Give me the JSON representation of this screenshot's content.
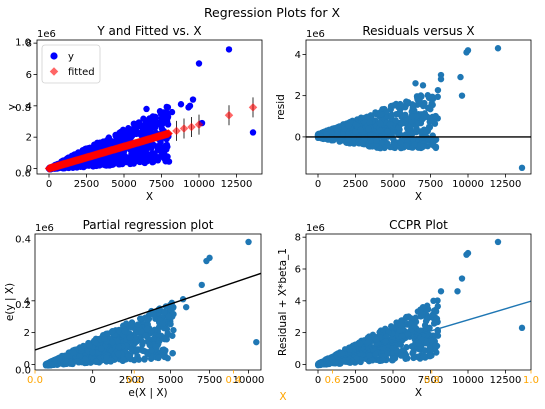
{
  "figure": {
    "suptitle": "Regression Plots for X",
    "overlay_xlabel": "X",
    "overlay_ticks": [
      "0.0",
      "0.2",
      "0.4",
      "0.6",
      "0.8",
      "1.0"
    ],
    "overlay_yticks": [
      "0.0",
      "0.2",
      "0.4",
      "0.6",
      "0.8",
      "1.0"
    ],
    "overlay_color": "#ffa500"
  },
  "chart_data": [
    {
      "type": "scatter",
      "title": "Y and Fitted vs. X",
      "xlabel": "X",
      "ylabel": "y",
      "offset_label": "1e6",
      "xlim": [
        -800,
        14200
      ],
      "ylim": [
        -0.35,
        8.2
      ],
      "xticks": [
        0,
        2500,
        5000,
        7500,
        10000,
        12500
      ],
      "xtick_labels": [
        "0",
        "2500",
        "5000",
        "7500",
        "10000",
        "12500"
      ],
      "yticks": [
        0,
        2,
        4,
        6,
        8
      ],
      "ytick_labels": [
        "0",
        "2",
        "4",
        "6",
        "8"
      ],
      "legend": {
        "placement": "upper-left",
        "entries": [
          "y",
          "fitted"
        ]
      },
      "colors": {
        "y": "#0000ff",
        "fitted": "#ff0000",
        "errorbar": "#000000"
      },
      "series": [
        {
          "name": "y",
          "marker": "circle",
          "outliers": [
            [
              12000,
              7.6
            ],
            [
              10000,
              6.7
            ],
            [
              9600,
              4.4
            ],
            [
              9400,
              4.0
            ],
            [
              9300,
              3.9
            ],
            [
              8800,
              4.1
            ],
            [
              8200,
              3.6
            ],
            [
              7700,
              3.3
            ],
            [
              13600,
              2.3
            ],
            [
              10200,
              2.9
            ],
            [
              6500,
              3.8
            ],
            [
              7000,
              3.2
            ]
          ]
        },
        {
          "name": "fitted",
          "marker": "diamond",
          "slope": 0.28,
          "x_range": [
            0,
            8000
          ],
          "errorbar_points": [
            [
              8500,
              2.4
            ],
            [
              9000,
              2.55
            ],
            [
              9500,
              2.65
            ],
            [
              10000,
              2.8
            ],
            [
              12000,
              3.4
            ],
            [
              13600,
              3.9
            ]
          ]
        }
      ]
    },
    {
      "type": "scatter",
      "title": "Residuals versus X",
      "xlabel": "X",
      "ylabel": "resid",
      "offset_label": "1e6",
      "xlim": [
        -800,
        14200
      ],
      "ylim": [
        -1.8,
        4.7
      ],
      "xticks": [
        0,
        2500,
        5000,
        7500,
        10000,
        12500
      ],
      "xtick_labels": [
        "0",
        "2500",
        "5000",
        "7500",
        "10000",
        "12500"
      ],
      "yticks": [
        0,
        2,
        4
      ],
      "ytick_labels": [
        "0",
        "2",
        "4"
      ],
      "hline": 0,
      "color": "#1f77b4",
      "outliers": [
        [
          12000,
          4.3
        ],
        [
          10000,
          4.2
        ],
        [
          9900,
          4.1
        ],
        [
          9500,
          2.9
        ],
        [
          9600,
          2.0
        ],
        [
          8200,
          3.0
        ],
        [
          8200,
          2.8
        ],
        [
          7000,
          2.5
        ],
        [
          13600,
          -1.5
        ],
        [
          6500,
          2.6
        ]
      ]
    },
    {
      "type": "scatter",
      "title": "Partial regression plot",
      "xlabel": "e(X | X)",
      "ylabel": "e(y | X)",
      "offset_label": "1e6",
      "xlim": [
        -3700,
        10800
      ],
      "ylim": [
        -0.35,
        8.2
      ],
      "xticks": [
        0,
        2500,
        5000,
        7500,
        10000
      ],
      "xtick_labels": [
        "0",
        "2500",
        "5000",
        "7500",
        "10000"
      ],
      "yticks": [
        0,
        2,
        4
      ],
      "ytick_labels": [
        "0",
        "2",
        "4"
      ],
      "regression_line": {
        "slope": 0.56,
        "intercept": 2.05,
        "color": "#000000"
      },
      "color": "#1f77b4",
      "outliers": [
        [
          10000,
          7.7
        ],
        [
          7500,
          6.7
        ],
        [
          7300,
          6.5
        ],
        [
          7000,
          5.0
        ],
        [
          5800,
          4.1
        ],
        [
          6000,
          3.6
        ],
        [
          4600,
          3.3
        ],
        [
          10500,
          1.4
        ]
      ]
    },
    {
      "type": "scatter",
      "title": "CCPR Plot",
      "xlabel": "X",
      "ylabel": "Residual + X*beta_1",
      "offset_label": "1e6",
      "xlim": [
        -800,
        14200
      ],
      "ylim": [
        -0.35,
        8.2
      ],
      "xticks": [
        0,
        2500,
        5000,
        7500,
        10000,
        12500
      ],
      "xtick_labels": [
        "0",
        "2500",
        "5000",
        "7500",
        "10000",
        "12500"
      ],
      "yticks": [
        0,
        2,
        4,
        6,
        8
      ],
      "ytick_labels": [
        "0",
        "2",
        "4",
        "6",
        "8"
      ],
      "fit_line": {
        "slope": 0.28,
        "color": "#1f77b4"
      },
      "color": "#1f77b4",
      "outliers": [
        [
          12000,
          7.7
        ],
        [
          10000,
          7.0
        ],
        [
          9900,
          6.9
        ],
        [
          9600,
          5.4
        ],
        [
          9300,
          4.6
        ],
        [
          8200,
          4.6
        ],
        [
          7700,
          4.0
        ],
        [
          13600,
          2.3
        ],
        [
          7000,
          3.6
        ]
      ]
    }
  ]
}
